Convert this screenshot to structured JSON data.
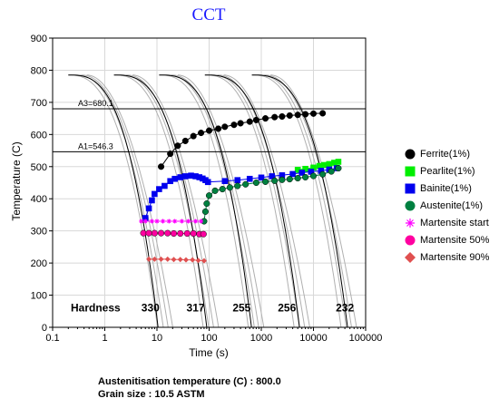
{
  "chart_data": {
    "type": "scatter",
    "title": "CCT",
    "xlabel": "Time (s)",
    "ylabel": "Temperature (C)",
    "xscale": "log",
    "xlim": [
      0.1,
      100000
    ],
    "ylim": [
      0,
      900
    ],
    "xticks": [
      {
        "value": 0.1,
        "label": "0.1"
      },
      {
        "value": 1,
        "label": "1"
      },
      {
        "value": 10,
        "label": "10"
      },
      {
        "value": 100,
        "label": "100"
      },
      {
        "value": 1000,
        "label": "1000"
      },
      {
        "value": 10000,
        "label": "10000"
      },
      {
        "value": 100000,
        "label": "100000"
      }
    ],
    "yticks": [
      0,
      100,
      200,
      300,
      400,
      500,
      600,
      700,
      800,
      900
    ],
    "grid": true,
    "legend_position": "right",
    "reference_lines": [
      {
        "label": "A3=680.1",
        "y": 680.1
      },
      {
        "label": "A1=546.3",
        "y": 546.3
      }
    ],
    "hardness_label": "Hardness",
    "hardness": [
      {
        "x": 7.5,
        "label": "330"
      },
      {
        "x": 55,
        "label": "317"
      },
      {
        "x": 420,
        "label": "255"
      },
      {
        "x": 3100,
        "label": "256"
      },
      {
        "x": 40000,
        "label": "232"
      }
    ],
    "series": [
      {
        "name": "Ferrite(1%)",
        "marker": "circle",
        "color": "#000000",
        "points": [
          [
            12,
            500
          ],
          [
            18,
            540
          ],
          [
            25,
            565
          ],
          [
            35,
            580
          ],
          [
            50,
            595
          ],
          [
            70,
            605
          ],
          [
            100,
            612
          ],
          [
            150,
            618
          ],
          [
            200,
            624
          ],
          [
            300,
            630
          ],
          [
            400,
            635
          ],
          [
            600,
            640
          ],
          [
            800,
            645
          ],
          [
            1200,
            650
          ],
          [
            1800,
            654
          ],
          [
            2500,
            656
          ],
          [
            3500,
            659
          ],
          [
            5000,
            661
          ],
          [
            7000,
            663
          ],
          [
            10000,
            665
          ],
          [
            15000,
            666
          ]
        ]
      },
      {
        "name": "Pearlite(1%)",
        "marker": "square",
        "color": "#00ee00",
        "points": [
          [
            5000,
            490
          ],
          [
            7000,
            493
          ],
          [
            10000,
            497
          ],
          [
            13000,
            502
          ],
          [
            16000,
            505
          ],
          [
            20000,
            508
          ],
          [
            25000,
            512
          ],
          [
            30000,
            515
          ]
        ]
      },
      {
        "name": "Bainite(1%)",
        "marker": "square",
        "color": "#0000ee",
        "points": [
          [
            6,
            340
          ],
          [
            7,
            370
          ],
          [
            8,
            395
          ],
          [
            9,
            415
          ],
          [
            11,
            430
          ],
          [
            14,
            440
          ],
          [
            18,
            455
          ],
          [
            22,
            462
          ],
          [
            28,
            467
          ],
          [
            35,
            470
          ],
          [
            45,
            472
          ],
          [
            55,
            470
          ],
          [
            65,
            467
          ],
          [
            75,
            463
          ],
          [
            85,
            458
          ],
          [
            95,
            452
          ],
          [
            200,
            455
          ],
          [
            350,
            458
          ],
          [
            600,
            462
          ],
          [
            1000,
            466
          ],
          [
            1600,
            470
          ],
          [
            2500,
            473
          ],
          [
            4000,
            477
          ],
          [
            6000,
            481
          ],
          [
            9000,
            484
          ],
          [
            14000,
            487
          ],
          [
            20000,
            491
          ],
          [
            28000,
            495
          ]
        ]
      },
      {
        "name": "Austenite(1%)",
        "marker": "circle",
        "color": "#008040",
        "points": [
          [
            80,
            330
          ],
          [
            85,
            360
          ],
          [
            90,
            385
          ],
          [
            100,
            410
          ],
          [
            130,
            425
          ],
          [
            180,
            430
          ],
          [
            250,
            435
          ],
          [
            350,
            440
          ],
          [
            500,
            445
          ],
          [
            800,
            450
          ],
          [
            1200,
            453
          ],
          [
            1800,
            456
          ],
          [
            2500,
            459
          ],
          [
            3500,
            461
          ],
          [
            5000,
            464
          ],
          [
            7000,
            467
          ],
          [
            10000,
            471
          ],
          [
            15000,
            476
          ],
          [
            22000,
            485
          ],
          [
            30000,
            495
          ]
        ]
      },
      {
        "name": "Martensite start",
        "marker": "star",
        "color": "#ff00ff",
        "points": [
          [
            5,
            330
          ],
          [
            6,
            330
          ],
          [
            8,
            330
          ],
          [
            10,
            330
          ],
          [
            13,
            330
          ],
          [
            17,
            330
          ],
          [
            22,
            330
          ],
          [
            30,
            330
          ],
          [
            40,
            330
          ],
          [
            55,
            330
          ],
          [
            70,
            330
          ]
        ]
      },
      {
        "name": "Martensite 50%",
        "marker": "circle",
        "color": "#ff00a0",
        "points": [
          [
            5.5,
            293
          ],
          [
            7,
            293
          ],
          [
            9,
            293
          ],
          [
            12,
            293
          ],
          [
            16,
            293
          ],
          [
            21,
            292
          ],
          [
            28,
            292
          ],
          [
            38,
            292
          ],
          [
            50,
            292
          ],
          [
            65,
            290
          ],
          [
            78,
            290
          ]
        ]
      },
      {
        "name": "Martensite 90%",
        "marker": "diamond",
        "color": "#e05050",
        "points": [
          [
            7,
            212
          ],
          [
            9,
            212
          ],
          [
            12,
            212
          ],
          [
            16,
            212
          ],
          [
            21,
            211
          ],
          [
            28,
            211
          ],
          [
            36,
            210
          ],
          [
            48,
            210
          ],
          [
            62,
            208
          ],
          [
            80,
            207
          ]
        ]
      }
    ],
    "cooling_curves": [
      {
        "t0": 0.2,
        "gamma": 2.6
      },
      {
        "t0": 0.27,
        "gamma": 2.4
      },
      {
        "t0": 0.35,
        "gamma": 2.2
      },
      {
        "t0": 0.45,
        "gamma": 2.0
      },
      {
        "t0": 1.5,
        "gamma": 2.6
      },
      {
        "t0": 2.0,
        "gamma": 2.4
      },
      {
        "t0": 2.6,
        "gamma": 2.2
      },
      {
        "t0": 3.4,
        "gamma": 2.0
      },
      {
        "t0": 11,
        "gamma": 2.6
      },
      {
        "t0": 15,
        "gamma": 2.4
      },
      {
        "t0": 19,
        "gamma": 2.2
      },
      {
        "t0": 25,
        "gamma": 2.0
      },
      {
        "t0": 83,
        "gamma": 2.6
      },
      {
        "t0": 110,
        "gamma": 2.4
      },
      {
        "t0": 145,
        "gamma": 2.2
      },
      {
        "t0": 190,
        "gamma": 2.0
      },
      {
        "t0": 660,
        "gamma": 2.6
      },
      {
        "t0": 870,
        "gamma": 2.4
      },
      {
        "t0": 1150,
        "gamma": 2.2
      },
      {
        "t0": 1500,
        "gamma": 2.0
      }
    ],
    "bold_cooling_curves": [
      {
        "t0": 0.2,
        "t_end": 10.5,
        "gamma": 3.0
      },
      {
        "t0": 1.5,
        "t_end": 90,
        "gamma": 3.0
      },
      {
        "t0": 11,
        "t_end": 650,
        "gamma": 3.0
      },
      {
        "t0": 83,
        "t_end": 5400,
        "gamma": 3.0
      },
      {
        "t0": 660,
        "t_end": 45000,
        "gamma": 3.0
      }
    ],
    "curve_start_temp": 785
  },
  "footer": {
    "austenitisation": "Austenitisation temperature (C) : 800.0",
    "grain_size": "Grain size : 10.5 ASTM"
  }
}
